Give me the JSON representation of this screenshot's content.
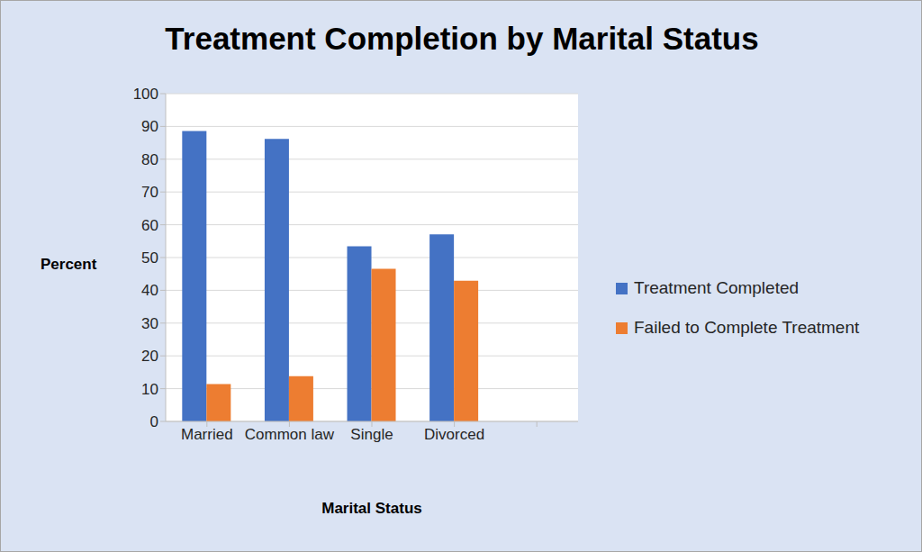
{
  "chart_data": {
    "type": "bar",
    "title": "Treatment Completion by Marital Status",
    "x_label": "Marital Status",
    "y_label": "Percent",
    "categories": [
      "Married",
      "Common law",
      "Single",
      "Divorced",
      null
    ],
    "series": [
      {
        "name": "Treatment Completed",
        "color": "#4472c4",
        "values": [
          88.6,
          86.2,
          53.4,
          57.1,
          null
        ]
      },
      {
        "name": "Failed to Complete Treatment",
        "color": "#ed7d31",
        "values": [
          11.4,
          13.8,
          46.6,
          42.9,
          null
        ]
      }
    ],
    "ylim": [
      0,
      100
    ],
    "yticks": [
      0,
      10,
      20,
      30,
      40,
      50,
      60,
      70,
      80,
      90,
      100
    ],
    "grid": true,
    "legend": "right"
  }
}
